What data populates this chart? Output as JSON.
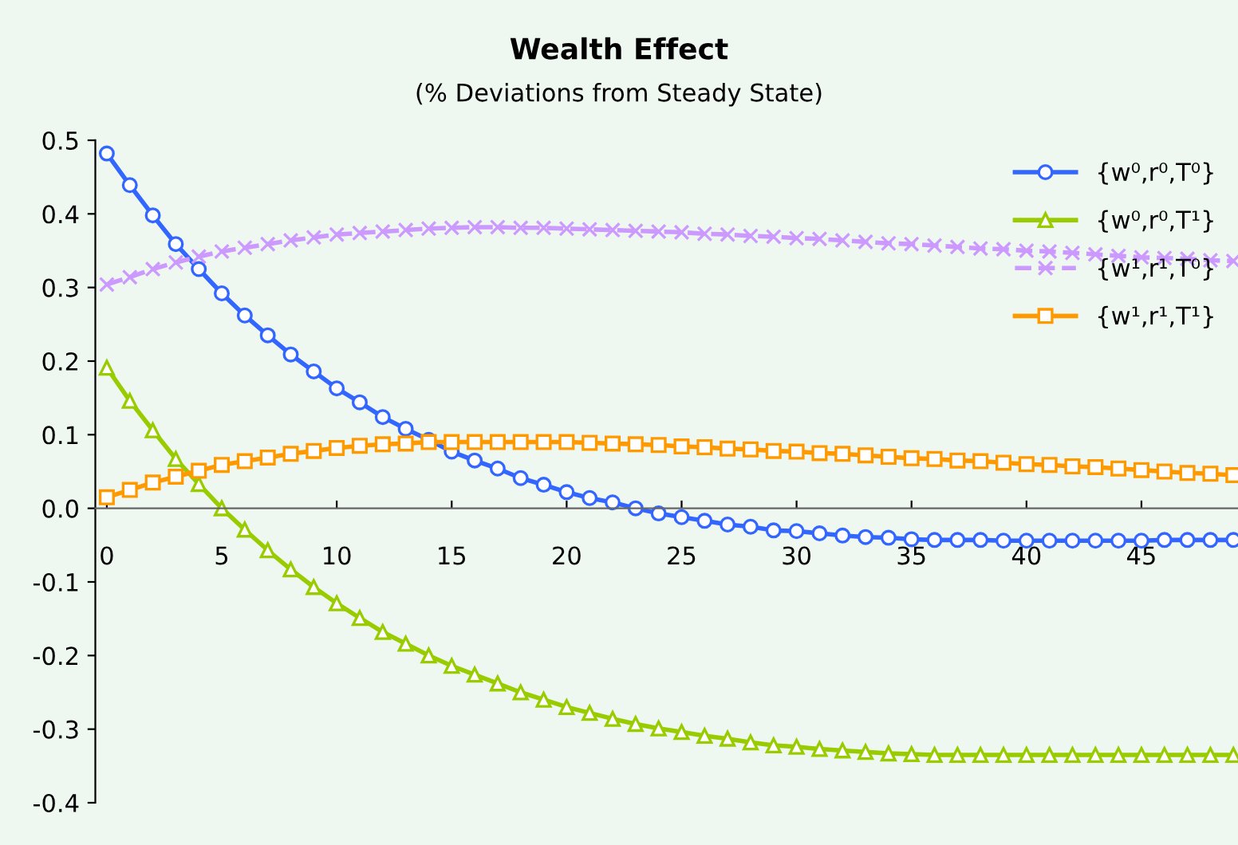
{
  "chart_data": {
    "type": "line",
    "title": "Wealth Effect",
    "subtitle": "(% Deviations from Steady State)",
    "x": [
      0,
      1,
      2,
      3,
      4,
      5,
      6,
      7,
      8,
      9,
      10,
      11,
      12,
      13,
      14,
      15,
      16,
      17,
      18,
      19,
      20,
      21,
      22,
      23,
      24,
      25,
      26,
      27,
      28,
      29,
      30,
      31,
      32,
      33,
      34,
      35,
      36,
      37,
      38,
      39,
      40,
      41,
      42,
      43,
      44,
      45,
      46,
      47,
      48,
      49
    ],
    "xlim": [
      -0.5,
      49.2
    ],
    "xticks": [
      0,
      5,
      10,
      15,
      20,
      25,
      30,
      35,
      40,
      45
    ],
    "ylim": [
      -0.4,
      0.5
    ],
    "yticks": [
      {
        "value": -0.4,
        "label": "-0.4"
      },
      {
        "value": -0.3,
        "label": "-0.3"
      },
      {
        "value": -0.2,
        "label": "-0.2"
      },
      {
        "value": -0.1,
        "label": "-0.1"
      },
      {
        "value": 0.0,
        "label": "0.0"
      },
      {
        "value": 0.1,
        "label": "0.1"
      },
      {
        "value": 0.2,
        "label": "0.2"
      },
      {
        "value": 0.3,
        "label": "0.3"
      },
      {
        "value": 0.4,
        "label": "0.4"
      },
      {
        "value": 0.5,
        "label": "0.5"
      }
    ],
    "grid": false,
    "legend": "top right",
    "series": [
      {
        "name": "{w⁰,r⁰,T⁰}",
        "color": "#3366ff",
        "marker": "circle",
        "line_style": "solid",
        "values": [
          0.482,
          0.439,
          0.398,
          0.359,
          0.325,
          0.292,
          0.262,
          0.235,
          0.209,
          0.186,
          0.163,
          0.144,
          0.124,
          0.108,
          0.093,
          0.077,
          0.065,
          0.054,
          0.041,
          0.032,
          0.022,
          0.014,
          0.008,
          0.0,
          -0.007,
          -0.012,
          -0.017,
          -0.022,
          -0.025,
          -0.03,
          -0.031,
          -0.034,
          -0.037,
          -0.039,
          -0.04,
          -0.042,
          -0.043,
          -0.043,
          -0.043,
          -0.044,
          -0.044,
          -0.044,
          -0.044,
          -0.044,
          -0.044,
          -0.044,
          -0.043,
          -0.043,
          -0.043,
          -0.043
        ]
      },
      {
        "name": "{w⁰,r⁰,T¹}",
        "color": "#99cc00",
        "marker": "triangle",
        "line_style": "solid",
        "values": [
          0.191,
          0.146,
          0.106,
          0.067,
          0.033,
          0.0,
          -0.029,
          -0.057,
          -0.083,
          -0.107,
          -0.129,
          -0.149,
          -0.168,
          -0.184,
          -0.2,
          -0.214,
          -0.226,
          -0.238,
          -0.25,
          -0.26,
          -0.27,
          -0.278,
          -0.286,
          -0.293,
          -0.299,
          -0.304,
          -0.309,
          -0.313,
          -0.318,
          -0.322,
          -0.324,
          -0.327,
          -0.329,
          -0.331,
          -0.333,
          -0.334,
          -0.335,
          -0.335,
          -0.335,
          -0.335,
          -0.335,
          -0.335,
          -0.335,
          -0.335,
          -0.335,
          -0.335,
          -0.335,
          -0.335,
          -0.335,
          -0.335
        ]
      },
      {
        "name": "{w¹,r¹,T⁰}",
        "color": "#cc99ff",
        "marker": "cross",
        "line_style": "dashed",
        "values": [
          0.304,
          0.314,
          0.325,
          0.334,
          0.342,
          0.349,
          0.354,
          0.359,
          0.364,
          0.368,
          0.372,
          0.374,
          0.376,
          0.378,
          0.38,
          0.381,
          0.382,
          0.382,
          0.381,
          0.381,
          0.38,
          0.379,
          0.378,
          0.377,
          0.376,
          0.375,
          0.373,
          0.372,
          0.37,
          0.369,
          0.367,
          0.366,
          0.364,
          0.362,
          0.36,
          0.359,
          0.357,
          0.355,
          0.353,
          0.352,
          0.35,
          0.349,
          0.347,
          0.345,
          0.343,
          0.341,
          0.34,
          0.339,
          0.337,
          0.336
        ]
      },
      {
        "name": "{w¹,r¹,T¹}",
        "color": "#ff9900",
        "marker": "square",
        "line_style": "solid",
        "values": [
          0.015,
          0.025,
          0.035,
          0.043,
          0.051,
          0.059,
          0.064,
          0.069,
          0.074,
          0.078,
          0.082,
          0.085,
          0.087,
          0.088,
          0.09,
          0.09,
          0.09,
          0.09,
          0.09,
          0.09,
          0.09,
          0.089,
          0.088,
          0.087,
          0.086,
          0.084,
          0.083,
          0.081,
          0.08,
          0.078,
          0.077,
          0.075,
          0.074,
          0.072,
          0.07,
          0.068,
          0.067,
          0.065,
          0.064,
          0.062,
          0.06,
          0.059,
          0.057,
          0.056,
          0.054,
          0.052,
          0.05,
          0.048,
          0.047,
          0.045
        ]
      }
    ]
  }
}
